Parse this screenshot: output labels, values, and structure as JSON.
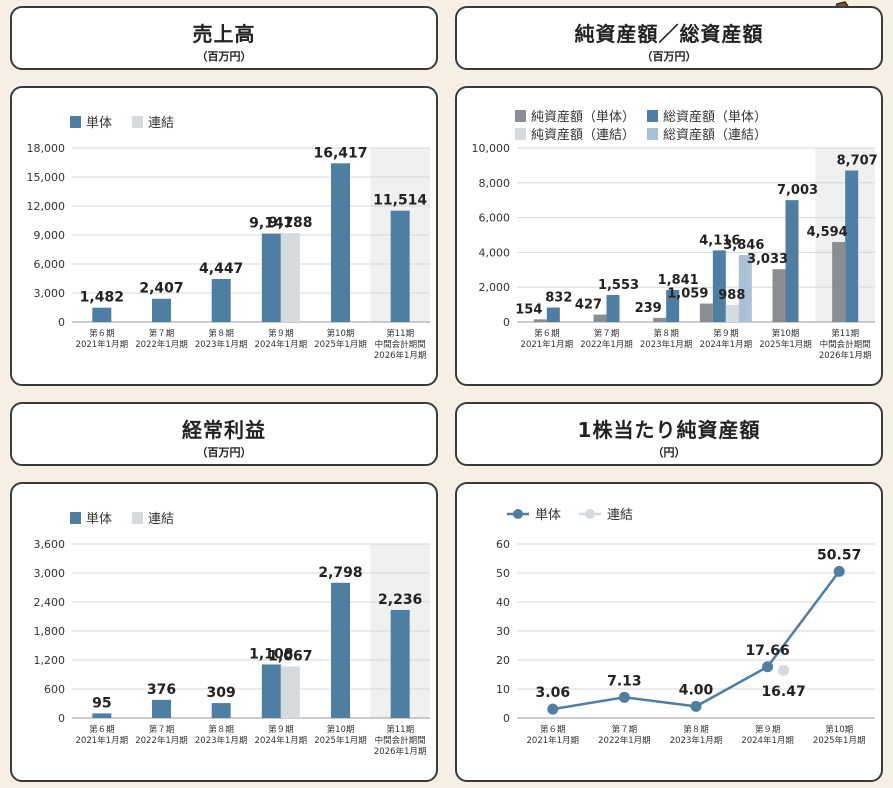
{
  "panels": {
    "sales": {
      "title": "売上高",
      "unit": "（百万円）"
    },
    "net_assets": {
      "title": "純資産額／総資産額",
      "unit": "（百万円）"
    },
    "ordinary_profit": {
      "title": "経常利益",
      "unit": "（百万円）"
    },
    "bps": {
      "title": "1株当たり純資産額",
      "unit": "（円）"
    }
  },
  "colors": {
    "single": "#4f7ea3",
    "consolidated": "#d5dade",
    "net_single": "#8a8e92",
    "net_consolidated": "#d5dade",
    "total_single": "#4f7ea3",
    "total_consolidated": "#a9c1d6",
    "highlight": "#eef1ee",
    "grid": "#d7d7d7"
  },
  "chart_data": [
    {
      "id": "sales",
      "type": "bar",
      "categories": [
        [
          "第６期",
          "2021年1月期"
        ],
        [
          "第７期",
          "2022年1月期"
        ],
        [
          "第８期",
          "2023年1月期"
        ],
        [
          "第９期",
          "2024年1月期"
        ],
        [
          "第10期",
          "2025年1月期"
        ],
        [
          "第11期",
          "中間会計期間",
          "2026年1月期"
        ]
      ],
      "series": [
        {
          "name": "単体",
          "values": [
            1482,
            2407,
            4447,
            9147,
            16417,
            11514
          ],
          "labels": [
            "1,482",
            "2,407",
            "4,447",
            "9,147",
            "16,417",
            "11,514"
          ]
        },
        {
          "name": "連結",
          "values": [
            null,
            null,
            null,
            9188,
            null,
            null
          ],
          "labels": [
            "",
            "",
            "",
            "9,188",
            "",
            ""
          ]
        }
      ],
      "ylim": [
        0,
        18000
      ],
      "yticks": [
        "0",
        "3,000",
        "6,000",
        "9,000",
        "12,000",
        "15,000",
        "18,000"
      ],
      "highlight_last": true,
      "grid": true,
      "legend_position": "top-left"
    },
    {
      "id": "net_assets",
      "type": "bar",
      "categories": [
        [
          "第６期",
          "2021年1月期"
        ],
        [
          "第７期",
          "2022年1月期"
        ],
        [
          "第８期",
          "2023年1月期"
        ],
        [
          "第９期",
          "2024年1月期"
        ],
        [
          "第10期",
          "2025年1月期"
        ],
        [
          "第11期",
          "中間会計期間",
          "2026年1月期"
        ]
      ],
      "series": [
        {
          "name": "純資産額（単体）",
          "values": [
            154,
            427,
            239,
            1059,
            3033,
            4594
          ],
          "labels": [
            "154",
            "427",
            "239",
            "1,059",
            "3,033",
            "4,594"
          ]
        },
        {
          "name": "総資産額（単体）",
          "values": [
            832,
            1553,
            1841,
            4116,
            7003,
            8707
          ],
          "labels": [
            "832",
            "1,553",
            "1,841",
            "4,116",
            "7,003",
            "8,707"
          ]
        },
        {
          "name": "純資産額（連結）",
          "values": [
            null,
            null,
            null,
            988,
            null,
            null
          ],
          "labels": [
            "",
            "",
            "",
            "988",
            "",
            ""
          ]
        },
        {
          "name": "総資産額（連結）",
          "values": [
            null,
            null,
            null,
            3846,
            null,
            null
          ],
          "labels": [
            "",
            "",
            "",
            "3,846",
            "",
            ""
          ]
        }
      ],
      "ylim": [
        0,
        10000
      ],
      "yticks": [
        "0",
        "2,000",
        "4,000",
        "6,000",
        "8,000",
        "10,000"
      ],
      "highlight_last": true,
      "grid": true,
      "legend_position": "top-left"
    },
    {
      "id": "ordinary_profit",
      "type": "bar",
      "categories": [
        [
          "第６期",
          "2021年1月期"
        ],
        [
          "第７期",
          "2022年1月期"
        ],
        [
          "第８期",
          "2023年1月期"
        ],
        [
          "第９期",
          "2024年1月期"
        ],
        [
          "第10期",
          "2025年1月期"
        ],
        [
          "第11期",
          "中間会計期間",
          "2026年1月期"
        ]
      ],
      "series": [
        {
          "name": "単体",
          "values": [
            95,
            376,
            309,
            1108,
            2798,
            2236
          ],
          "labels": [
            "95",
            "376",
            "309",
            "1,108",
            "2,798",
            "2,236"
          ]
        },
        {
          "name": "連結",
          "values": [
            null,
            null,
            null,
            1067,
            null,
            null
          ],
          "labels": [
            "",
            "",
            "",
            "1,067",
            "",
            ""
          ]
        }
      ],
      "ylim": [
        0,
        3600
      ],
      "yticks": [
        "0",
        "600",
        "1,200",
        "1,800",
        "2,400",
        "3,000",
        "3,600"
      ],
      "highlight_last": true,
      "grid": true,
      "legend_position": "top-left"
    },
    {
      "id": "bps",
      "type": "line",
      "categories": [
        [
          "第６期",
          "2021年1月期"
        ],
        [
          "第７期",
          "2022年1月期"
        ],
        [
          "第８期",
          "2023年1月期"
        ],
        [
          "第９期",
          "2024年1月期"
        ],
        [
          "第10期",
          "2025年1月期"
        ]
      ],
      "series": [
        {
          "name": "単体",
          "values": [
            3.06,
            7.13,
            4.0,
            17.66,
            50.57
          ],
          "labels": [
            "3.06",
            "7.13",
            "4.00",
            "17.66",
            "50.57"
          ]
        },
        {
          "name": "連結",
          "values": [
            null,
            null,
            null,
            16.47,
            null
          ],
          "labels": [
            "",
            "",
            "",
            "16.47",
            ""
          ]
        }
      ],
      "ylim": [
        0,
        60
      ],
      "yticks": [
        "0",
        "10",
        "20",
        "30",
        "40",
        "50",
        "60"
      ],
      "grid": true,
      "legend_position": "top-left"
    }
  ]
}
